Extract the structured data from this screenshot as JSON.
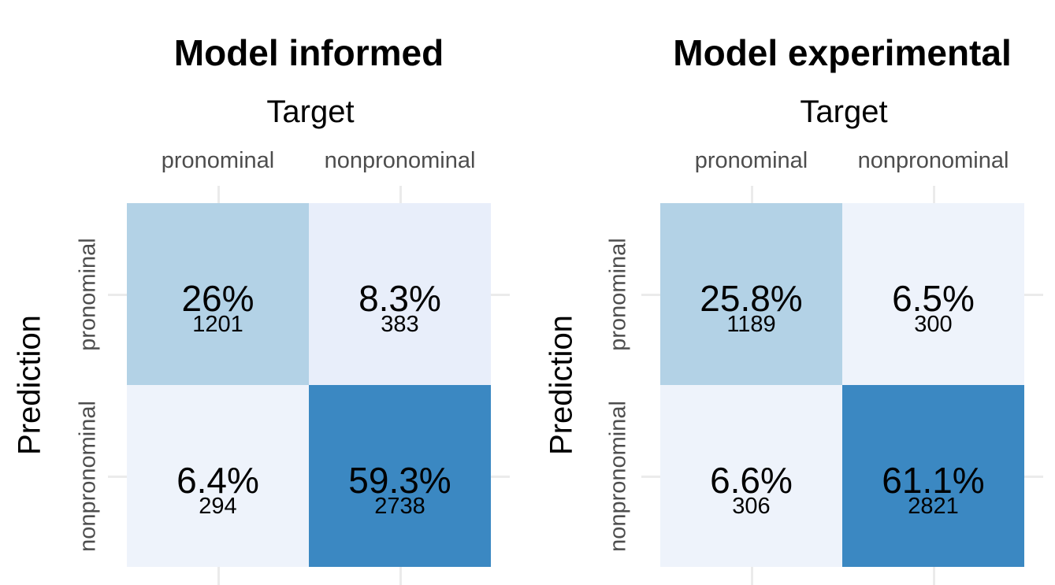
{
  "chart_data": [
    {
      "type": "heatmap",
      "title": "Model informed",
      "xlabel": "Target",
      "ylabel": "Prediction",
      "x_categories": [
        "pronominal",
        "nonpronominal"
      ],
      "y_categories": [
        "pronominal",
        "nonpronominal"
      ],
      "cells": [
        {
          "target": "pronominal",
          "prediction": "pronominal",
          "percent": "26%",
          "count": "1201",
          "color": "#b3d2e6"
        },
        {
          "target": "nonpronominal",
          "prediction": "pronominal",
          "percent": "8.3%",
          "count": "383",
          "color": "#e8eefa"
        },
        {
          "target": "pronominal",
          "prediction": "nonpronominal",
          "percent": "6.4%",
          "count": "294",
          "color": "#eef3fb"
        },
        {
          "target": "nonpronominal",
          "prediction": "nonpronominal",
          "percent": "59.3%",
          "count": "2738",
          "color": "#3b88c2"
        }
      ]
    },
    {
      "type": "heatmap",
      "title": "Model experimental",
      "xlabel": "Target",
      "ylabel": "Prediction",
      "x_categories": [
        "pronominal",
        "nonpronominal"
      ],
      "y_categories": [
        "pronominal",
        "nonpronominal"
      ],
      "cells": [
        {
          "target": "pronominal",
          "prediction": "pronominal",
          "percent": "25.8%",
          "count": "1189",
          "color": "#b3d2e6"
        },
        {
          "target": "nonpronominal",
          "prediction": "pronominal",
          "percent": "6.5%",
          "count": "300",
          "color": "#eef3fb"
        },
        {
          "target": "pronominal",
          "prediction": "nonpronominal",
          "percent": "6.6%",
          "count": "306",
          "color": "#eef3fb"
        },
        {
          "target": "nonpronominal",
          "prediction": "nonpronominal",
          "percent": "61.1%",
          "count": "2821",
          "color": "#3b88c2"
        }
      ]
    }
  ]
}
